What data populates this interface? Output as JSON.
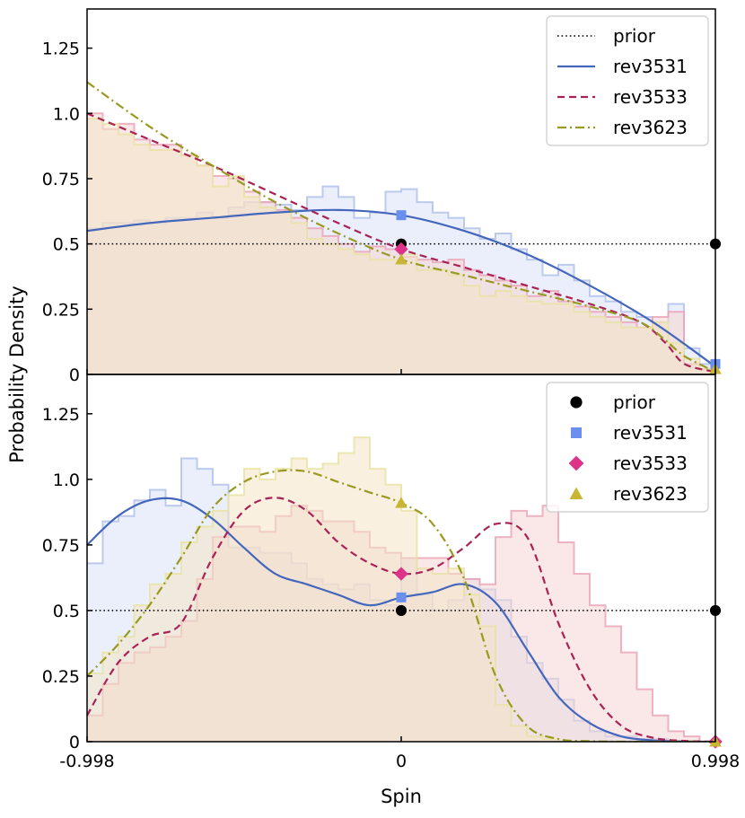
{
  "chart_data": [
    {
      "type": "line",
      "panel": "top",
      "legend_position": "top-right",
      "xlim": [
        -0.998,
        0.998
      ],
      "ylim": [
        0,
        1.4
      ],
      "yticks": [
        0,
        0.25,
        0.5,
        0.75,
        1.0,
        1.25
      ],
      "ytick_labels": [
        "0",
        "0.25",
        "0.5",
        "0.75",
        "1.0",
        "1.25"
      ],
      "legend": [
        {
          "key": "prior",
          "label": "prior",
          "color": "#000000",
          "style": "dotted"
        },
        {
          "key": "rev3531",
          "label": "rev3531",
          "color": "#4466bb",
          "style": "solid"
        },
        {
          "key": "rev3533",
          "label": "rev3533",
          "color": "#aa2255",
          "style": "dashed"
        },
        {
          "key": "rev3623",
          "label": "rev3623",
          "color": "#999922",
          "style": "dashdot"
        }
      ],
      "series": [
        {
          "key": "prior",
          "color": "#000000",
          "x": [
            -0.998,
            0.998
          ],
          "y": [
            0.5,
            0.5
          ]
        },
        {
          "key": "rev3531",
          "color": "#4466bb",
          "x": [
            -0.998,
            -0.8,
            -0.6,
            -0.4,
            -0.2,
            0.0,
            0.2,
            0.4,
            0.6,
            0.8,
            0.998
          ],
          "y": [
            0.55,
            0.58,
            0.6,
            0.62,
            0.63,
            0.61,
            0.55,
            0.46,
            0.34,
            0.2,
            0.03
          ]
        },
        {
          "key": "rev3533",
          "color": "#aa2255",
          "x": [
            -0.998,
            -0.8,
            -0.6,
            -0.4,
            -0.2,
            0.0,
            0.2,
            0.4,
            0.6,
            0.76,
            0.84,
            0.9,
            0.998
          ],
          "y": [
            1.0,
            0.9,
            0.8,
            0.69,
            0.58,
            0.48,
            0.41,
            0.34,
            0.27,
            0.2,
            0.12,
            0.04,
            0.01
          ]
        },
        {
          "key": "rev3623",
          "color": "#999922",
          "x": [
            -0.998,
            -0.8,
            -0.6,
            -0.4,
            -0.2,
            0.0,
            0.2,
            0.4,
            0.6,
            0.76,
            0.84,
            0.9,
            0.998
          ],
          "y": [
            1.12,
            0.95,
            0.8,
            0.66,
            0.54,
            0.44,
            0.38,
            0.32,
            0.26,
            0.2,
            0.13,
            0.07,
            0.01
          ]
        }
      ],
      "histograms": [
        {
          "key": "rev3531",
          "fill": "#d8e2f7",
          "edge": "#aebee8",
          "values": [
            0.56,
            0.58,
            0.58,
            0.59,
            0.58,
            0.6,
            0.6,
            0.62,
            0.6,
            0.64,
            0.66,
            0.66,
            0.65,
            0.63,
            0.68,
            0.72,
            0.68,
            0.6,
            0.62,
            0.7,
            0.71,
            0.66,
            0.62,
            0.6,
            0.56,
            0.52,
            0.54,
            0.48,
            0.44,
            0.38,
            0.42,
            0.36,
            0.3,
            0.28,
            0.24,
            0.22,
            0.2,
            0.27,
            0.1,
            0.04
          ]
        },
        {
          "key": "rev3533",
          "fill": "#f4d6d3",
          "edge": "#eaa1b5",
          "values": [
            1.0,
            0.94,
            0.96,
            0.9,
            0.88,
            0.88,
            0.84,
            0.8,
            0.76,
            0.75,
            0.7,
            0.66,
            0.63,
            0.6,
            0.56,
            0.53,
            0.5,
            0.47,
            0.49,
            0.48,
            0.45,
            0.44,
            0.43,
            0.44,
            0.4,
            0.38,
            0.36,
            0.34,
            0.3,
            0.32,
            0.28,
            0.26,
            0.24,
            0.22,
            0.2,
            0.18,
            0.22,
            0.24,
            0.04,
            0.02
          ]
        },
        {
          "key": "rev3623",
          "fill": "#f4e4c7",
          "edge": "#e8e2a0",
          "values": [
            0.98,
            0.96,
            0.92,
            0.88,
            0.86,
            0.86,
            0.84,
            0.8,
            0.72,
            0.76,
            0.68,
            0.64,
            0.62,
            0.58,
            0.52,
            0.5,
            0.48,
            0.46,
            0.44,
            0.44,
            0.46,
            0.4,
            0.4,
            0.38,
            0.34,
            0.3,
            0.32,
            0.3,
            0.28,
            0.27,
            0.27,
            0.24,
            0.22,
            0.2,
            0.18,
            0.18,
            0.2,
            0.12,
            0.06,
            0.02
          ]
        }
      ],
      "markers": [
        {
          "key": "prior",
          "shape": "circle",
          "color": "#000000",
          "x": 0.0,
          "y": 0.5
        },
        {
          "key": "prior",
          "shape": "circle",
          "color": "#000000",
          "x": 0.998,
          "y": 0.5
        },
        {
          "key": "rev3531",
          "shape": "square",
          "color": "#6a8fee",
          "x": 0.0,
          "y": 0.61
        },
        {
          "key": "rev3531",
          "shape": "square",
          "color": "#6a8fee",
          "x": 0.998,
          "y": 0.04
        },
        {
          "key": "rev3533",
          "shape": "diamond",
          "color": "#dd3388",
          "x": 0.0,
          "y": 0.48
        },
        {
          "key": "rev3623",
          "shape": "triangle",
          "color": "#c8b533",
          "x": 0.0,
          "y": 0.44
        },
        {
          "key": "rev3623",
          "shape": "triangle",
          "color": "#c8b533",
          "x": 0.998,
          "y": 0.02
        }
      ]
    },
    {
      "type": "line",
      "panel": "bottom",
      "legend_position": "top-right",
      "xlim": [
        -0.998,
        0.998
      ],
      "ylim": [
        0,
        1.4
      ],
      "xticks": [
        -0.998,
        0,
        0.998
      ],
      "xtick_labels": [
        "-0.998",
        "0",
        "0.998"
      ],
      "yticks": [
        0,
        0.25,
        0.5,
        0.75,
        1.0,
        1.25
      ],
      "ytick_labels": [
        "0",
        "0.25",
        "0.5",
        "0.75",
        "1.0",
        "1.25"
      ],
      "xlabel": "Spin",
      "legend": [
        {
          "key": "prior",
          "label": "prior",
          "color": "#000000",
          "shape": "circle"
        },
        {
          "key": "rev3531",
          "label": "rev3531",
          "color": "#6a8fee",
          "shape": "square"
        },
        {
          "key": "rev3533",
          "label": "rev3533",
          "color": "#dd3388",
          "shape": "diamond"
        },
        {
          "key": "rev3623",
          "label": "rev3623",
          "color": "#c8b533",
          "shape": "triangle"
        }
      ],
      "series": [
        {
          "key": "prior",
          "color": "#000000",
          "x": [
            -0.998,
            0.998
          ],
          "y": [
            0.5,
            0.5
          ]
        },
        {
          "key": "rev3531",
          "color": "#4466bb",
          "x": [
            -0.998,
            -0.9,
            -0.8,
            -0.7,
            -0.6,
            -0.5,
            -0.4,
            -0.3,
            -0.2,
            -0.1,
            0.0,
            0.1,
            0.2,
            0.3,
            0.4,
            0.5,
            0.6,
            0.7,
            0.8,
            0.9,
            0.998
          ],
          "y": [
            0.75,
            0.86,
            0.92,
            0.92,
            0.85,
            0.74,
            0.64,
            0.6,
            0.56,
            0.52,
            0.55,
            0.57,
            0.6,
            0.53,
            0.35,
            0.17,
            0.07,
            0.02,
            0.005,
            0.001,
            0.0
          ]
        },
        {
          "key": "rev3533",
          "color": "#aa2255",
          "x": [
            -0.998,
            -0.9,
            -0.8,
            -0.7,
            -0.6,
            -0.5,
            -0.4,
            -0.3,
            -0.2,
            -0.1,
            0.0,
            0.1,
            0.2,
            0.3,
            0.4,
            0.5,
            0.6,
            0.7,
            0.8,
            0.9,
            0.998
          ],
          "y": [
            0.1,
            0.3,
            0.4,
            0.45,
            0.7,
            0.88,
            0.93,
            0.88,
            0.76,
            0.68,
            0.64,
            0.66,
            0.74,
            0.83,
            0.78,
            0.45,
            0.2,
            0.06,
            0.015,
            0.003,
            0.0
          ]
        },
        {
          "key": "rev3623",
          "color": "#999922",
          "x": [
            -0.998,
            -0.9,
            -0.8,
            -0.7,
            -0.6,
            -0.5,
            -0.4,
            -0.3,
            -0.2,
            -0.1,
            0.0,
            0.1,
            0.2,
            0.3,
            0.4,
            0.5,
            0.6,
            0.7,
            0.8,
            0.9,
            0.998
          ],
          "y": [
            0.25,
            0.37,
            0.52,
            0.7,
            0.89,
            0.99,
            1.03,
            1.03,
            0.99,
            0.95,
            0.91,
            0.83,
            0.62,
            0.25,
            0.06,
            0.01,
            0.002,
            0.0,
            0.0,
            0.0,
            0.0
          ]
        }
      ],
      "histograms": [
        {
          "key": "rev3531",
          "fill": "#d8e2f7",
          "edge": "#aebee8",
          "values": [
            0.68,
            0.84,
            0.86,
            0.92,
            0.96,
            0.9,
            1.08,
            1.04,
            0.98,
            0.74,
            0.74,
            0.72,
            0.72,
            0.68,
            0.62,
            0.6,
            0.58,
            0.6,
            0.54,
            0.52,
            0.7,
            0.56,
            0.5,
            0.54,
            0.62,
            0.58,
            0.54,
            0.4,
            0.3,
            0.24,
            0.16,
            0.08,
            0.04,
            0.02,
            0.02,
            0.01,
            0.01,
            0.0,
            0.0,
            0.0
          ]
        },
        {
          "key": "rev3533",
          "fill": "#f4d6d3",
          "edge": "#eaa1b5",
          "values": [
            0.1,
            0.22,
            0.3,
            0.34,
            0.36,
            0.4,
            0.46,
            0.62,
            0.78,
            0.82,
            0.82,
            0.8,
            0.86,
            0.9,
            0.88,
            0.84,
            0.84,
            0.8,
            0.74,
            0.72,
            0.7,
            0.7,
            0.7,
            0.64,
            0.62,
            0.6,
            0.78,
            0.88,
            0.86,
            0.9,
            0.76,
            0.64,
            0.52,
            0.44,
            0.34,
            0.2,
            0.1,
            0.04,
            0.02,
            0.0
          ]
        },
        {
          "key": "rev3623",
          "fill": "#f4e4c7",
          "edge": "#e8e2a0",
          "values": [
            0.26,
            0.34,
            0.4,
            0.52,
            0.6,
            0.64,
            0.76,
            0.82,
            0.88,
            0.94,
            1.04,
            1.0,
            1.04,
            1.08,
            1.04,
            1.06,
            1.1,
            1.16,
            1.04,
            0.98,
            0.88,
            0.66,
            0.64,
            0.66,
            0.56,
            0.44,
            0.14,
            0.06,
            0.02,
            0.01,
            0.0,
            0.0,
            0.0,
            0.0,
            0.0,
            0.0,
            0.0,
            0.0,
            0.0,
            0.0
          ]
        }
      ],
      "markers": [
        {
          "key": "prior",
          "shape": "circle",
          "color": "#000000",
          "x": 0.0,
          "y": 0.5
        },
        {
          "key": "prior",
          "shape": "circle",
          "color": "#000000",
          "x": 0.998,
          "y": 0.5
        },
        {
          "key": "rev3531",
          "shape": "square",
          "color": "#6a8fee",
          "x": 0.0,
          "y": 0.55
        },
        {
          "key": "rev3533",
          "shape": "diamond",
          "color": "#dd3388",
          "x": 0.0,
          "y": 0.64
        },
        {
          "key": "rev3623",
          "shape": "triangle",
          "color": "#c8b533",
          "x": 0.0,
          "y": 0.91
        },
        {
          "key": "rev3533",
          "shape": "diamond",
          "color": "#dd3388",
          "x": 0.998,
          "y": 0.0
        },
        {
          "key": "rev3623",
          "shape": "triangle",
          "color": "#c8b533",
          "x": 0.998,
          "y": 0.0
        }
      ]
    }
  ],
  "ylabel": "Probability Density"
}
